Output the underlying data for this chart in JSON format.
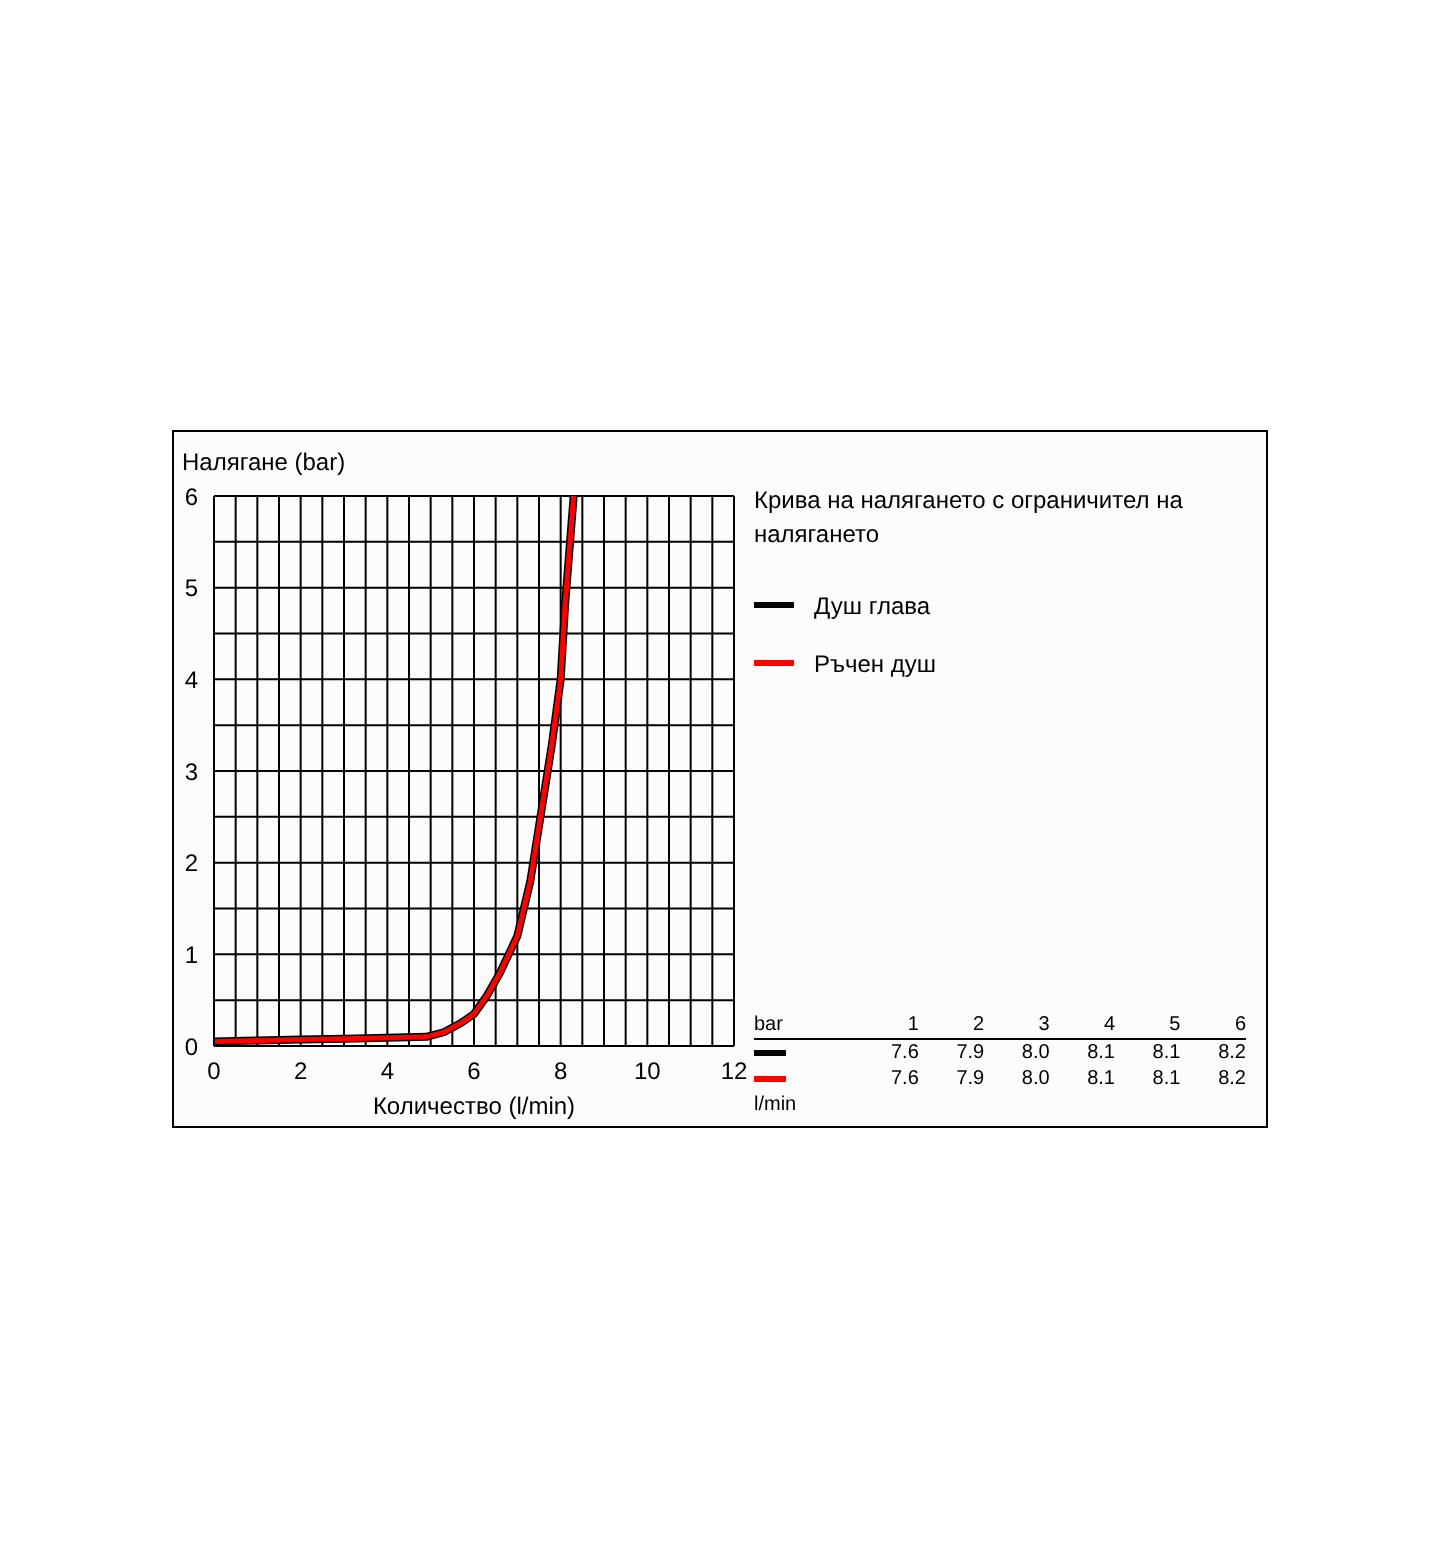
{
  "chart_data": {
    "type": "line",
    "xlabel": "Количество (l/min)",
    "ylabel": "Налягане (bar)",
    "legend_title": "Крива на налягането с ограничител на налягането",
    "legend": "top right",
    "grid": true,
    "marker": "none",
    "line_style": "solid",
    "x": [
      0,
      1,
      2,
      3,
      4,
      4.9,
      5.3,
      5.7,
      6,
      6.3,
      6.6,
      7,
      7.3,
      7.6,
      7.8,
      8,
      8.1,
      8.2,
      8.3
    ],
    "series": [
      {
        "name": "Душ глава",
        "color": "#000000",
        "values": [
          0.05,
          0.06,
          0.07,
          0.08,
          0.09,
          0.1,
          0.15,
          0.25,
          0.35,
          0.55,
          0.8,
          1.2,
          1.8,
          2.7,
          3.3,
          4.0,
          4.8,
          5.4,
          6
        ]
      },
      {
        "name": "Ръчен душ",
        "color": "#ff0000",
        "values": [
          0.05,
          0.06,
          0.07,
          0.08,
          0.09,
          0.1,
          0.15,
          0.25,
          0.35,
          0.55,
          0.8,
          1.2,
          1.8,
          2.7,
          3.3,
          4.0,
          4.8,
          5.4,
          6
        ]
      }
    ],
    "xlim": [
      0,
      12
    ],
    "xticks": [
      0,
      {
        "value": 0.5,
        "label": null
      },
      {
        "value": 1,
        "label": null
      },
      {
        "value": 1.5,
        "label": null
      },
      2,
      {
        "value": 2.5,
        "label": null
      },
      {
        "value": 3,
        "label": null
      },
      {
        "value": 3.5,
        "label": null
      },
      4,
      {
        "value": 4.5,
        "label": null
      },
      {
        "value": 5,
        "label": null
      },
      {
        "value": 5.5,
        "label": null
      },
      6,
      {
        "value": 6.5,
        "label": null
      },
      {
        "value": 7,
        "label": null
      },
      {
        "value": 7.5,
        "label": null
      },
      8,
      {
        "value": 8.5,
        "label": null
      },
      {
        "value": 9,
        "label": null
      },
      {
        "value": 9.5,
        "label": null
      },
      10,
      {
        "value": 10.5,
        "label": null
      },
      {
        "value": 11,
        "label": null
      },
      {
        "value": 11.5,
        "label": null
      },
      12
    ],
    "ylim": [
      0,
      6
    ],
    "yticks": [
      0,
      {
        "value": 0.5,
        "label": null
      },
      1,
      {
        "value": 1.5,
        "label": null
      },
      2,
      {
        "value": 2.5,
        "label": null
      },
      3,
      {
        "value": 3.5,
        "label": null
      },
      4,
      {
        "value": 4.5,
        "label": null
      },
      5,
      {
        "value": 5.5,
        "label": null
      },
      6
    ],
    "annotations": [
      "bar",
      "1",
      "2",
      "3",
      "4",
      "5",
      "6",
      "7.6",
      "7.9",
      "8.0",
      "8.1",
      "8.1",
      "8.2",
      "7.6",
      "7.9",
      "8.0",
      "8.1",
      "8.1",
      "8.2",
      "l/min"
    ]
  }
}
